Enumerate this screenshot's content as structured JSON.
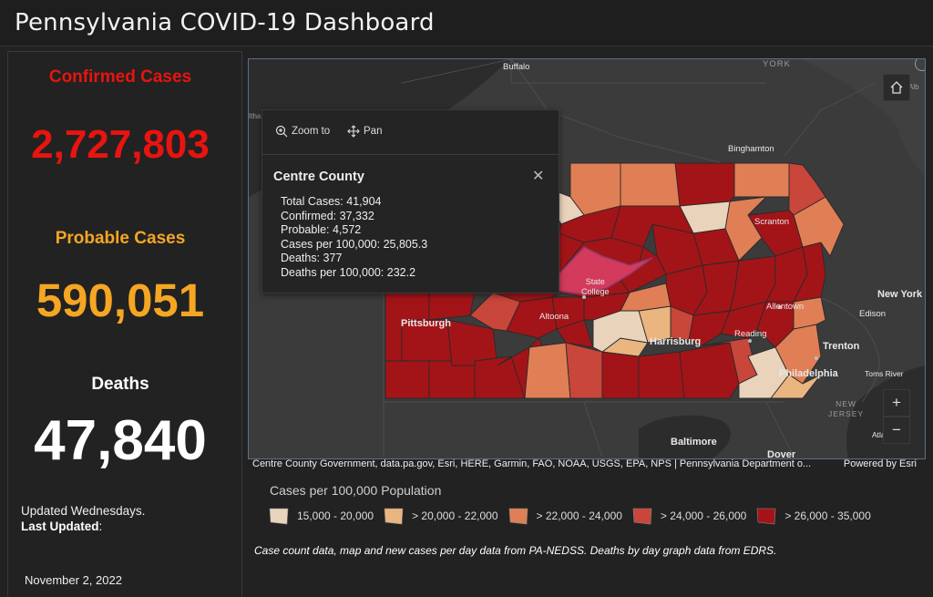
{
  "header": {
    "title": "Pennsylvania COVID-19 Dashboard"
  },
  "stats": {
    "confirmed": {
      "label": "Confirmed Cases",
      "value": "2,727,803",
      "color": "#e8140f"
    },
    "probable": {
      "label": "Probable Cases",
      "value": "590,051",
      "color": "#f5a623"
    },
    "deaths": {
      "label": "Deaths",
      "value": "47,840",
      "color": "#ffffff"
    }
  },
  "update": {
    "schedule": "Updated Wednesdays.",
    "last_label": "Last Updated",
    "colon": ":",
    "date": "November 2, 2022"
  },
  "map": {
    "labels": {
      "buffalo": "Buffalo",
      "york": "YORK",
      "binghamton": "Binghamton",
      "scranton": "Scranton",
      "state_college": "State\nCollege",
      "pittsburgh": "Pittsburgh",
      "altoona": "Altoona",
      "harrisburg": "Harrisburg",
      "reading": "Reading",
      "allentown": "Allentown",
      "edison": "Edison",
      "new_york": "New York",
      "trenton": "Trenton",
      "philadelphia": "Philadelphia",
      "toms_river": "Toms River",
      "new_jersey": "NEW\nJERSEY",
      "atlantic": "Atlantic C",
      "baltimore": "Baltimore",
      "dover": "Dover",
      "alb": "Alb",
      "ithaca": "Itha"
    },
    "attribution": "Centre County Government, data.pa.gov, Esri, HERE, Garmin, FAO, NOAA, USGS, EPA, NPS | Pennsylvania Department o...",
    "powered": "Powered by Esri"
  },
  "popup": {
    "zoom_label": "Zoom to",
    "pan_label": "Pan",
    "title": "Centre County",
    "rows": [
      "Total Cases: 41,904",
      "Confirmed: 37,332",
      "Probable: 4,572",
      "Cases per 100,000: 25,805.3",
      "Deaths: 377",
      "Deaths per 100,000: 232.2"
    ]
  },
  "legend": {
    "title": "Cases per 100,000 Population",
    "items": [
      {
        "label": "15,000 - 20,000",
        "color": "#e9d3bb"
      },
      {
        "label": "> 20,000 - 22,000",
        "color": "#ebb57f"
      },
      {
        "label": "> 22,000 - 24,000",
        "color": "#e07f55"
      },
      {
        "label": "> 24,000 - 26,000",
        "color": "#c8463a"
      },
      {
        "label": "> 26,000 - 35,000",
        "color": "#a31418"
      }
    ]
  },
  "footnote": "Case count data, map and new cases per day data from PA-NEDSS.  Deaths by day graph data from EDRS."
}
